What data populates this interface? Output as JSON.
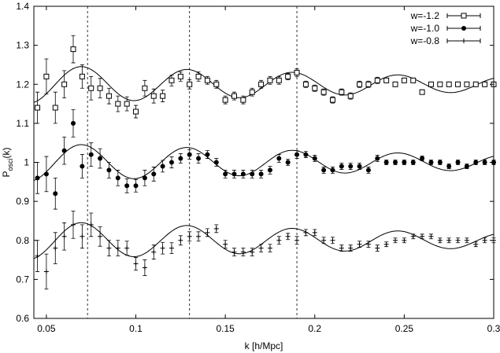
{
  "chart_data": {
    "type": "scatter",
    "title": "",
    "xlabel": "k [h/Mpc]",
    "ylabel_main": "P",
    "ylabel_sub": "osci",
    "ylabel_tail": "(k)",
    "xlim": [
      0.043,
      0.3
    ],
    "ylim": [
      0.6,
      1.4
    ],
    "x_ticks": [
      0.05,
      0.1,
      0.15,
      0.2,
      0.25,
      0.3
    ],
    "x_tick_labels": [
      "0.05",
      "0.1",
      "0.15",
      "0.2",
      "0.25",
      "0.3"
    ],
    "y_ticks": [
      0.6,
      0.7,
      0.8,
      0.9,
      1.0,
      1.1,
      1.2,
      1.3,
      1.4
    ],
    "y_tick_labels": [
      "0.6",
      "0.7",
      "0.8",
      "0.9",
      "1",
      "1.1",
      "1.2",
      "1.3",
      "1.4"
    ],
    "vertical_lines": [
      0.073,
      0.13,
      0.19
    ],
    "grid": false,
    "legend_position": "top-right",
    "series": [
      {
        "name": "w=-1.2",
        "marker": "open-square",
        "x": [
          0.045,
          0.05,
          0.055,
          0.06,
          0.065,
          0.07,
          0.075,
          0.08,
          0.085,
          0.09,
          0.095,
          0.1,
          0.105,
          0.11,
          0.115,
          0.12,
          0.125,
          0.13,
          0.135,
          0.14,
          0.145,
          0.15,
          0.155,
          0.16,
          0.165,
          0.17,
          0.175,
          0.18,
          0.185,
          0.19,
          0.195,
          0.2,
          0.205,
          0.21,
          0.215,
          0.22,
          0.225,
          0.23,
          0.235,
          0.24,
          0.245,
          0.25,
          0.255,
          0.26,
          0.265,
          0.27,
          0.275,
          0.28,
          0.285,
          0.29,
          0.295,
          0.3
        ],
        "y": [
          1.14,
          1.22,
          1.14,
          1.2,
          1.29,
          1.22,
          1.19,
          1.19,
          1.17,
          1.15,
          1.15,
          1.13,
          1.19,
          1.17,
          1.17,
          1.21,
          1.22,
          1.2,
          1.22,
          1.21,
          1.2,
          1.16,
          1.17,
          1.16,
          1.18,
          1.2,
          1.21,
          1.21,
          1.22,
          1.23,
          1.2,
          1.19,
          1.18,
          1.16,
          1.18,
          1.17,
          1.2,
          1.2,
          1.21,
          1.21,
          1.2,
          1.21,
          1.21,
          1.18,
          1.2,
          1.2,
          1.2,
          1.2,
          1.2,
          1.2,
          1.2,
          1.2
        ],
        "err": [
          0.04,
          0.045,
          0.04,
          0.035,
          0.035,
          0.03,
          0.03,
          0.025,
          0.02,
          0.02,
          0.018,
          0.016,
          0.02,
          0.018,
          0.015,
          0.014,
          0.012,
          0.012,
          0.012,
          0.01,
          0.01,
          0.01,
          0.01,
          0.01,
          0.01,
          0.01,
          0.01,
          0.01,
          0.008,
          0.01,
          0.008,
          0.008,
          0.008,
          0.008,
          0.008,
          0.008,
          0.008,
          0.008,
          0.008,
          0.006,
          0.006,
          0.006,
          0.006,
          0.006,
          0.006,
          0.006,
          0.006,
          0.006,
          0.006,
          0.006,
          0.006,
          0.006
        ],
        "curve": {
          "base": 1.2,
          "amp": 0.045,
          "decay": 0.3
        }
      },
      {
        "name": "w=-1.0",
        "marker": "filled-circle",
        "x": [
          0.045,
          0.05,
          0.055,
          0.06,
          0.065,
          0.07,
          0.075,
          0.08,
          0.085,
          0.09,
          0.095,
          0.1,
          0.105,
          0.11,
          0.115,
          0.12,
          0.125,
          0.13,
          0.135,
          0.14,
          0.145,
          0.15,
          0.155,
          0.16,
          0.165,
          0.17,
          0.175,
          0.18,
          0.185,
          0.19,
          0.195,
          0.2,
          0.205,
          0.21,
          0.215,
          0.22,
          0.225,
          0.23,
          0.235,
          0.24,
          0.245,
          0.25,
          0.255,
          0.26,
          0.265,
          0.27,
          0.275,
          0.28,
          0.285,
          0.29,
          0.295,
          0.3
        ],
        "y": [
          0.96,
          0.97,
          0.92,
          1.03,
          1.1,
          0.99,
          1.02,
          1.01,
          0.98,
          0.96,
          0.94,
          0.94,
          0.96,
          0.97,
          0.99,
          1.0,
          1.01,
          1.02,
          1.01,
          1.02,
          1.0,
          0.97,
          0.97,
          0.97,
          0.97,
          0.97,
          0.98,
          1.01,
          1.0,
          1.02,
          1.02,
          1.01,
          0.98,
          0.98,
          0.99,
          0.99,
          0.99,
          0.98,
          1.01,
          1.0,
          1.0,
          1.0,
          1.0,
          1.01,
          1.0,
          1.0,
          0.99,
          1.0,
          0.99,
          1.0,
          1.0,
          1.0
        ],
        "err": [
          0.04,
          0.045,
          0.04,
          0.035,
          0.035,
          0.03,
          0.03,
          0.025,
          0.02,
          0.02,
          0.018,
          0.016,
          0.02,
          0.018,
          0.015,
          0.014,
          0.012,
          0.012,
          0.012,
          0.01,
          0.01,
          0.01,
          0.01,
          0.01,
          0.01,
          0.01,
          0.01,
          0.01,
          0.008,
          0.01,
          0.008,
          0.008,
          0.008,
          0.008,
          0.008,
          0.008,
          0.008,
          0.008,
          0.008,
          0.006,
          0.006,
          0.006,
          0.006,
          0.006,
          0.006,
          0.006,
          0.006,
          0.006,
          0.006,
          0.006,
          0.006,
          0.006
        ],
        "curve": {
          "base": 1.0,
          "amp": 0.045,
          "decay": 0.3
        }
      },
      {
        "name": "w=-0.8",
        "marker": "plus",
        "x": [
          0.045,
          0.05,
          0.055,
          0.06,
          0.065,
          0.07,
          0.075,
          0.08,
          0.085,
          0.09,
          0.095,
          0.1,
          0.105,
          0.11,
          0.115,
          0.12,
          0.125,
          0.13,
          0.135,
          0.14,
          0.145,
          0.15,
          0.155,
          0.16,
          0.165,
          0.17,
          0.175,
          0.18,
          0.185,
          0.19,
          0.195,
          0.2,
          0.205,
          0.21,
          0.215,
          0.22,
          0.225,
          0.23,
          0.235,
          0.24,
          0.245,
          0.25,
          0.255,
          0.26,
          0.265,
          0.27,
          0.275,
          0.28,
          0.285,
          0.29,
          0.295,
          0.3
        ],
        "y": [
          0.76,
          0.72,
          0.78,
          0.81,
          0.84,
          0.81,
          0.84,
          0.81,
          0.78,
          0.78,
          0.78,
          0.74,
          0.73,
          0.77,
          0.78,
          0.78,
          0.8,
          0.81,
          0.81,
          0.82,
          0.83,
          0.79,
          0.77,
          0.77,
          0.77,
          0.78,
          0.78,
          0.8,
          0.81,
          0.8,
          0.82,
          0.82,
          0.8,
          0.8,
          0.78,
          0.78,
          0.79,
          0.79,
          0.78,
          0.79,
          0.8,
          0.8,
          0.81,
          0.81,
          0.81,
          0.8,
          0.8,
          0.8,
          0.8,
          0.79,
          0.8,
          0.8
        ],
        "err": [
          0.04,
          0.045,
          0.04,
          0.035,
          0.035,
          0.03,
          0.03,
          0.025,
          0.02,
          0.02,
          0.018,
          0.016,
          0.02,
          0.018,
          0.015,
          0.014,
          0.012,
          0.012,
          0.012,
          0.01,
          0.01,
          0.01,
          0.01,
          0.01,
          0.01,
          0.01,
          0.01,
          0.01,
          0.008,
          0.01,
          0.008,
          0.008,
          0.008,
          0.008,
          0.008,
          0.008,
          0.008,
          0.008,
          0.008,
          0.006,
          0.006,
          0.006,
          0.006,
          0.006,
          0.006,
          0.006,
          0.006,
          0.006,
          0.006,
          0.006,
          0.006,
          0.006
        ],
        "curve": {
          "base": 0.8,
          "amp": 0.045,
          "decay": 0.3
        }
      }
    ]
  }
}
